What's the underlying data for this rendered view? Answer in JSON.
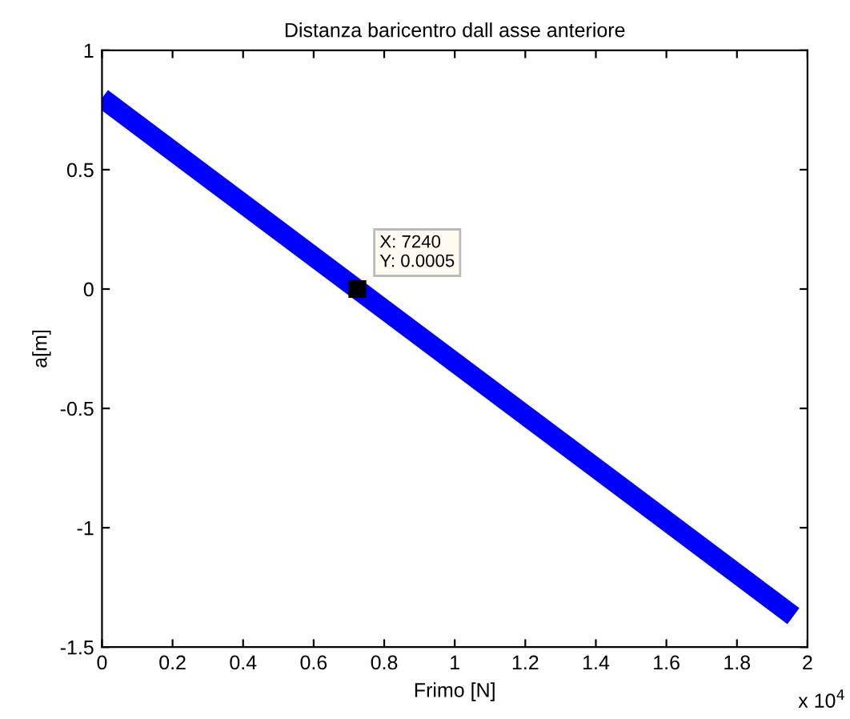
{
  "chart_data": {
    "type": "line",
    "title": "Distanza baricentro dall asse anteriore",
    "xlabel": "Frimo [N]",
    "ylabel": "a[m]",
    "x": [
      0,
      1.96
    ],
    "values": [
      0.8,
      -1.37
    ],
    "color": "#0000ff",
    "xlim": [
      0,
      2
    ],
    "ylim": [
      -1.5,
      1
    ],
    "xticks": [
      0,
      0.2,
      0.4,
      0.6,
      0.8,
      1,
      1.2,
      1.4,
      1.6,
      1.8,
      2
    ],
    "yticks": [
      -1.5,
      -1,
      -0.5,
      0,
      0.5,
      1
    ],
    "annotations": [
      {
        "text": "X: 7240\nY: 0.0005",
        "x": 0.724,
        "y": 0
      },
      "x 10$^{4}$"
    ],
    "grid": false,
    "legend": false,
    "marker": "none",
    "line_style": "solid"
  }
}
